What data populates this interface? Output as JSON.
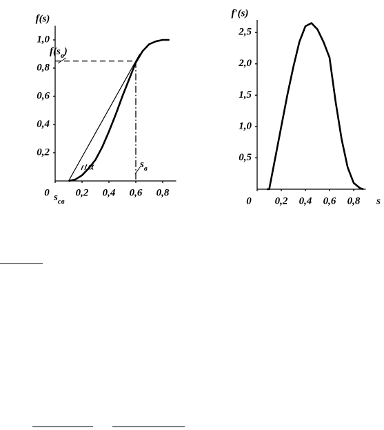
{
  "chart_data": [
    {
      "type": "line",
      "y_label": "f(s)",
      "color": "#000000",
      "x": [
        0.1,
        0.15,
        0.2,
        0.25,
        0.3,
        0.35,
        0.4,
        0.45,
        0.5,
        0.55,
        0.6,
        0.65,
        0.7,
        0.75,
        0.8,
        0.85
      ],
      "values": [
        0,
        0.01,
        0.04,
        0.09,
        0.15,
        0.24,
        0.35,
        0.47,
        0.6,
        0.72,
        0.84,
        0.92,
        0.97,
        0.99,
        1.0,
        1.0
      ],
      "xlim": [
        0,
        0.9
      ],
      "ylim": [
        0,
        1.1
      ],
      "xticks": [
        0,
        {
          "value": 0.2,
          "label": "0,2"
        },
        {
          "value": 0.4,
          "label": "0,4"
        },
        {
          "value": 0.6,
          "label": "0,6"
        },
        {
          "value": 0.8,
          "label": "0,8"
        }
      ],
      "yticks": [
        {
          "value": 0.2,
          "label": "0,2"
        },
        {
          "value": 0.4,
          "label": "0,4"
        },
        {
          "value": 0.6,
          "label": "0,6"
        },
        {
          "value": 0.8,
          "label": "0,8"
        },
        {
          "value": 1.0,
          "label": "1,0"
        }
      ],
      "guides": {
        "s_sv": 0.1,
        "s_v": 0.6,
        "f_v": 0.85
      },
      "annotations": {
        "f_sv": {
          "base": "f(s",
          "sub": "в",
          "tail": ")"
        },
        "alpha": "α",
        "s_v": {
          "base": "s",
          "sub": "в"
        },
        "s_sv": {
          "base": "s",
          "sub": "св"
        }
      }
    },
    {
      "type": "line",
      "y_label": "f′(s)",
      "x_label": "s",
      "color": "#000000",
      "x": [
        0.08,
        0.1,
        0.15,
        0.2,
        0.25,
        0.3,
        0.35,
        0.4,
        0.45,
        0.5,
        0.55,
        0.6,
        0.65,
        0.7,
        0.75,
        0.8,
        0.85,
        0.88
      ],
      "values": [
        0,
        0,
        0.5,
        1.0,
        1.5,
        1.95,
        2.35,
        2.6,
        2.65,
        2.55,
        2.35,
        2.1,
        1.4,
        0.8,
        0.35,
        0.1,
        0.02,
        0
      ],
      "xlim": [
        0,
        0.9
      ],
      "ylim": [
        0,
        2.7
      ],
      "xticks": [
        0,
        {
          "value": 0.2,
          "label": "0,2"
        },
        {
          "value": 0.4,
          "label": "0,4"
        },
        {
          "value": 0.6,
          "label": "0,6"
        },
        {
          "value": 0.8,
          "label": "0,8"
        }
      ],
      "yticks": [
        {
          "value": 0.5,
          "label": "0,5"
        },
        {
          "value": 1.0,
          "label": "1,0"
        },
        {
          "value": 1.5,
          "label": "1,5"
        },
        {
          "value": 2.0,
          "label": "2,0"
        },
        {
          "value": 2.5,
          "label": "2,5"
        }
      ]
    }
  ]
}
